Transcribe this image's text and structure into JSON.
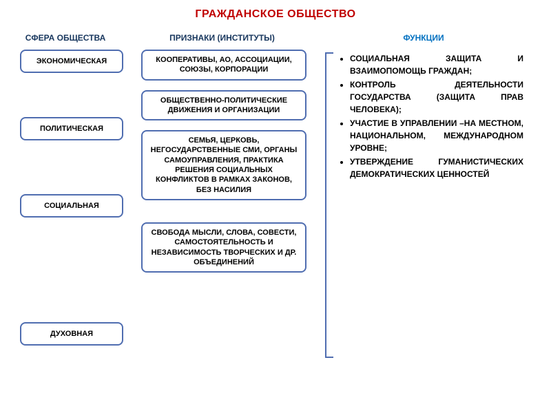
{
  "colors": {
    "title": "#c00000",
    "header_text": "#17365d",
    "func_header": "#0070c0",
    "box_border": "#4f6db0",
    "bracket": "#4f6db0",
    "body_text": "#000000"
  },
  "title": "ГРАЖДАНСКОЕ ОБЩЕСТВО",
  "headers": {
    "spheres": "СФЕРА ОБЩЕСТВА",
    "institutions": "ПРИЗНАКИ (ИНСТИТУТЫ)",
    "functions": "ФУНКЦИИ"
  },
  "spheres": [
    {
      "label": "ЭКОНОМИЧЕСКАЯ",
      "gap_after": 64
    },
    {
      "label": "ПОЛИТИЧЕСКАЯ",
      "gap_after": 78
    },
    {
      "label": "СОЦИАЛЬНАЯ",
      "gap_after": 152
    },
    {
      "label": "ДУХОВНАЯ",
      "gap_after": 0
    }
  ],
  "institutions": [
    {
      "text": "КООПЕРАТИВЫ, АО, АССОЦИАЦИИ, СОЮЗЫ, КОРПОРАЦИИ",
      "gap_after": 14
    },
    {
      "text": "ОБЩЕСТВЕННО-ПОЛИТИЧЕСКИЕ ДВИЖЕНИЯ И ОРГАНИЗАЦИИ",
      "gap_after": 14
    },
    {
      "text": "СЕМЬЯ, ЦЕРКОВЬ, НЕГОСУДАРСТВЕННЫЕ СМИ, ОРГАНЫ САМОУПРАВЛЕНИЯ, ПРАКТИКА РЕШЕНИЯ СОЦИАЛЬНЫХ КОНФЛИКТОВ В РАМКАХ ЗАКОНОВ, БЕЗ НАСИЛИЯ",
      "gap_after": 32
    },
    {
      "text": "СВОБОДА МЫСЛИ, СЛОВА, СОВЕСТИ, САМОСТОЯТЕЛЬНОСТЬ И НЕЗАВИСИМОСТЬ ТВОРЧЕСКИХ И ДР. ОБЪЕДИНЕНИЙ",
      "gap_after": 0
    }
  ],
  "functions": [
    "СОЦИАЛЬНАЯ ЗАЩИТА И ВЗАИМОПОМОЩЬ ГРАЖДАН;",
    "КОНТРОЛЬ ДЕЯТЕЛЬНОСТИ ГОСУДАРСТВА (ЗАЩИТА ПРАВ ЧЕЛОВЕКА);",
    "УЧАСТИЕ В УПРАВЛЕНИИ –НА МЕСТНОМ, НАЦИОНАЛЬНОМ, МЕЖДУНАРОДНОМ УРОВНЕ;",
    "УТВЕРЖДЕНИЕ ГУМАНИСТИЧЕСКИХ ДЕМОКРАТИЧЕСКИХ ЦЕННОСТЕЙ"
  ]
}
